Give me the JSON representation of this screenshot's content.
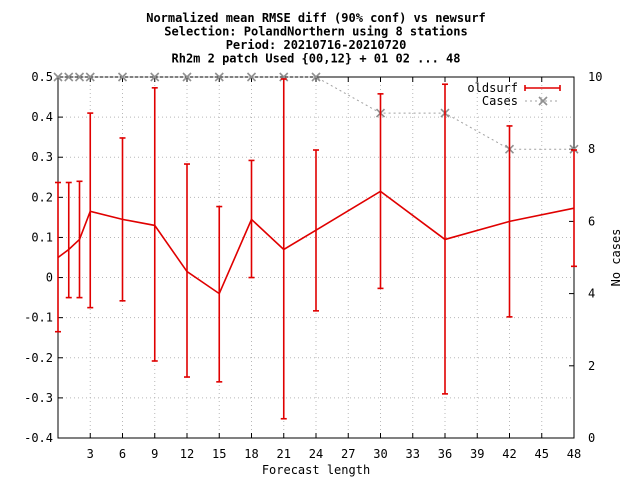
{
  "chart_data": {
    "type": "line",
    "title_lines": [
      "Normalized mean RMSE diff (90% conf) vs newsurf",
      "Selection: PolandNorthern using     8 stations",
      "Period: 20210716-20210720",
      "Rh2m 2 patch   Used {00,12} + 01 02 ... 48"
    ],
    "xlabel": "Forecast length",
    "ylabel": "",
    "y2label": "No cases",
    "xlim": [
      0,
      48
    ],
    "ylim": [
      -0.4,
      0.5
    ],
    "y2lim": [
      0,
      10
    ],
    "x_ticks": [
      3,
      6,
      9,
      12,
      15,
      18,
      21,
      24,
      27,
      30,
      33,
      36,
      39,
      42,
      45,
      48
    ],
    "y_ticks": [
      -0.4,
      -0.3,
      -0.2,
      -0.1,
      0,
      0.1,
      0.2,
      0.3,
      0.4,
      0.5
    ],
    "y2_ticks": [
      0,
      2,
      4,
      6,
      8,
      10
    ],
    "grid": true,
    "legend_position": "top-right",
    "series": [
      {
        "name": "oldsurf",
        "axis": "left",
        "color": "#e00000",
        "x": [
          0,
          1,
          2,
          3,
          6,
          9,
          12,
          15,
          18,
          21,
          24,
          30,
          36,
          42,
          48
        ],
        "y": [
          0.05,
          0.07,
          0.095,
          0.165,
          0.145,
          0.13,
          0.015,
          -0.04,
          0.145,
          0.07,
          0.118,
          0.215,
          0.095,
          0.14,
          0.173
        ],
        "low": [
          -0.135,
          -0.05,
          -0.05,
          -0.075,
          -0.058,
          -0.208,
          -0.248,
          -0.26,
          0.0,
          -0.352,
          -0.083,
          -0.027,
          -0.29,
          -0.098,
          0.028
        ],
        "high": [
          0.237,
          0.237,
          0.24,
          0.41,
          0.348,
          0.473,
          0.283,
          0.177,
          0.292,
          0.495,
          0.318,
          0.458,
          0.482,
          0.378,
          0.318
        ]
      },
      {
        "name": "Cases",
        "axis": "right",
        "color": "#a0a0a0",
        "x": [
          0,
          1,
          2,
          3,
          6,
          9,
          12,
          15,
          18,
          21,
          24,
          30,
          36,
          42,
          48
        ],
        "y": [
          10,
          10,
          10,
          10,
          10,
          10,
          10,
          10,
          10,
          10,
          10,
          9,
          9,
          8,
          8
        ]
      }
    ]
  }
}
